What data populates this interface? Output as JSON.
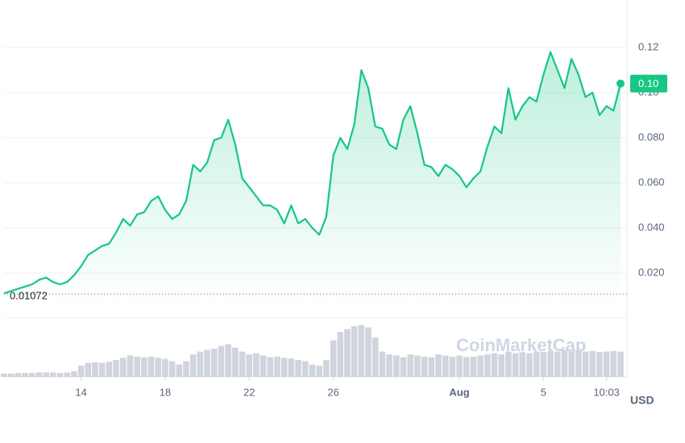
{
  "chart_data": {
    "type": "area",
    "series": [
      {
        "color": "#16c784",
        "values": [
          0.011,
          0.012,
          0.013,
          0.014,
          0.015,
          0.017,
          0.018,
          0.016,
          0.015,
          0.016,
          0.019,
          0.023,
          0.028,
          0.03,
          0.032,
          0.033,
          0.038,
          0.044,
          0.041,
          0.046,
          0.047,
          0.052,
          0.054,
          0.048,
          0.044,
          0.046,
          0.052,
          0.068,
          0.065,
          0.069,
          0.079,
          0.08,
          0.088,
          0.077,
          0.062,
          0.058,
          0.054,
          0.05,
          0.05,
          0.048,
          0.042,
          0.05,
          0.042,
          0.044,
          0.04,
          0.037,
          0.045,
          0.072,
          0.08,
          0.075,
          0.086,
          0.11,
          0.102,
          0.085,
          0.084,
          0.077,
          0.075,
          0.088,
          0.094,
          0.082,
          0.068,
          0.067,
          0.063,
          0.068,
          0.066,
          0.063,
          0.058,
          0.062,
          0.065,
          0.076,
          0.085,
          0.082,
          0.102,
          0.088,
          0.094,
          0.098,
          0.096,
          0.108,
          0.118,
          0.11,
          0.102,
          0.115,
          0.108,
          0.098,
          0.1,
          0.09,
          0.094,
          0.092,
          0.104
        ]
      }
    ],
    "current_price_label": "0.10",
    "volume": {
      "color": "#d0d4dc",
      "values": [
        6,
        6,
        7,
        7,
        7,
        8,
        8,
        8,
        7,
        8,
        10,
        20,
        25,
        26,
        25,
        27,
        30,
        34,
        38,
        36,
        35,
        36,
        34,
        32,
        28,
        22,
        28,
        40,
        45,
        48,
        50,
        55,
        58,
        52,
        45,
        40,
        42,
        38,
        35,
        36,
        34,
        33,
        30,
        28,
        22,
        20,
        30,
        65,
        80,
        85,
        90,
        92,
        88,
        70,
        45,
        40,
        38,
        35,
        40,
        38,
        36,
        35,
        40,
        38,
        36,
        38,
        35,
        36,
        38,
        40,
        42,
        40,
        45,
        42,
        44,
        42,
        45,
        44,
        46,
        45,
        48,
        46,
        47,
        45,
        46,
        44,
        45,
        46,
        45
      ]
    },
    "reference_line": 0.01072,
    "ylim": [
      0,
      0.14
    ],
    "yticks": [
      {
        "value": 0.02,
        "label": "0.020"
      },
      {
        "value": 0.04,
        "label": "0.040"
      },
      {
        "value": 0.06,
        "label": "0.060"
      },
      {
        "value": 0.08,
        "label": "0.080"
      },
      {
        "value": 0.1,
        "label": "0.10"
      },
      0.12
    ],
    "xlim": [
      0,
      88
    ],
    "xticks": [
      {
        "value": 11,
        "label": "14"
      },
      {
        "value": 23,
        "label": "18"
      },
      {
        "value": 35,
        "label": "22"
      },
      {
        "value": 47,
        "label": "26"
      },
      {
        "value": 65,
        "label": "Aug"
      },
      {
        "value": 77,
        "label": "5"
      },
      {
        "value": 86,
        "label": "10:03"
      }
    ],
    "currency": "USD",
    "watermark": "CoinMarketCap",
    "grid": true
  }
}
